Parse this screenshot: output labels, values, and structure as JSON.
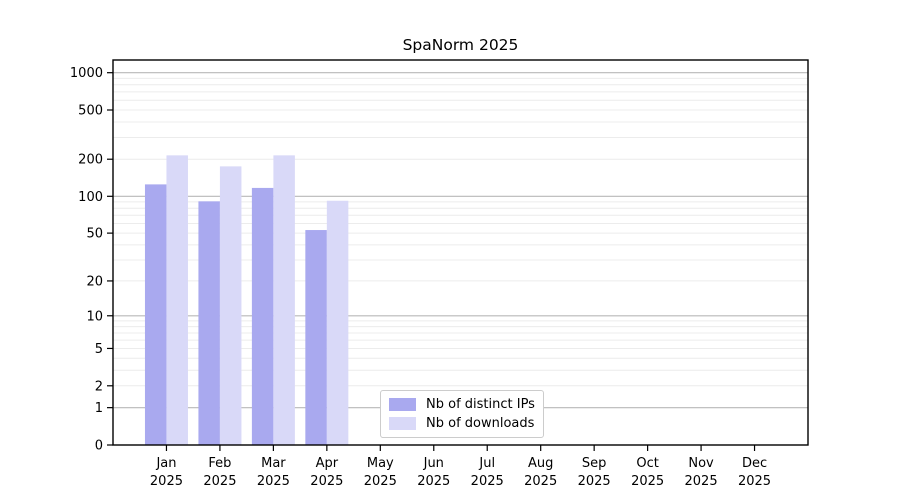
{
  "title": "SpaNorm 2025",
  "chart_data": {
    "type": "bar",
    "title": "SpaNorm 2025",
    "categories": [
      "Jan",
      "Feb",
      "Mar",
      "Apr",
      "May",
      "Jun",
      "Jul",
      "Aug",
      "Sep",
      "Oct",
      "Nov",
      "Dec"
    ],
    "category_year": "2025",
    "series": [
      {
        "name": "Nb of distinct IPs",
        "color": "#a9a9ef",
        "values": [
          125,
          91,
          117,
          53,
          null,
          null,
          null,
          null,
          null,
          null,
          null,
          null
        ]
      },
      {
        "name": "Nb of downloads",
        "color": "#d9d9f8",
        "values": [
          215,
          175,
          215,
          92,
          null,
          null,
          null,
          null,
          null,
          null,
          null,
          null
        ]
      }
    ],
    "yscale": "log1p",
    "yticks": [
      0,
      1,
      2,
      5,
      10,
      20,
      50,
      100,
      200,
      500,
      1000
    ],
    "decade_gridlines": [
      1,
      10,
      100,
      1000
    ],
    "grid": "horizontal-minor-and-major",
    "legend_position": "bottom-center-inside",
    "colors": {
      "axis": "#000000",
      "minor_grid": "#ececec",
      "decade_grid": "#b8b8b8",
      "background": "#ffffff"
    }
  }
}
